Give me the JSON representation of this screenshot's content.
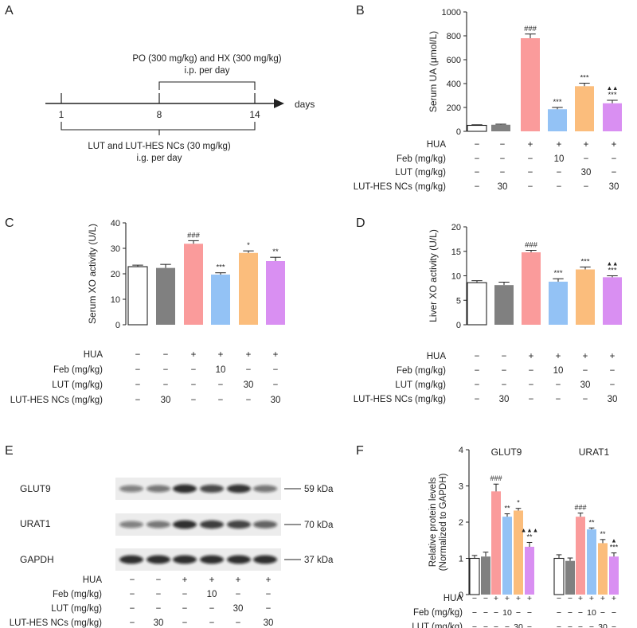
{
  "colors": {
    "control": "#ffffff",
    "lut_hes_only": "#808080",
    "hua": "#fa9b9b",
    "feb": "#93c2f5",
    "lut": "#fbbd7c",
    "lut_hes": "#d98ff2",
    "axis": "#222222"
  },
  "treatment_rows": [
    {
      "label": "HUA",
      "values": [
        "−",
        "−",
        "+",
        "+",
        "+",
        "+"
      ]
    },
    {
      "label": "Feb (mg/kg)",
      "values": [
        "−",
        "−",
        "−",
        "10",
        "−",
        "−"
      ]
    },
    {
      "label": "LUT (mg/kg)",
      "values": [
        "−",
        "−",
        "−",
        "−",
        "30",
        "−"
      ]
    },
    {
      "label": "LUT-HES NCs (mg/kg)",
      "values": [
        "−",
        "30",
        "−",
        "−",
        "−",
        "30"
      ]
    }
  ],
  "panels": {
    "A": {
      "letter": "A",
      "top_text": "PO (300 mg/kg) and HX (300 mg/kg)",
      "top_sub": "i.p. per day",
      "bottom_text": "LUT and LUT-HES NCs (30 mg/kg)",
      "bottom_sub": "i.g. per day",
      "ticks": [
        "1",
        "8",
        "14"
      ],
      "axis_label": "days"
    },
    "B": {
      "letter": "B"
    },
    "C": {
      "letter": "C"
    },
    "D": {
      "letter": "D"
    },
    "E": {
      "letter": "E",
      "bands": [
        {
          "name": "GLUT9",
          "kda": "59 kDa"
        },
        {
          "name": "URAT1",
          "kda": "70 kDa"
        },
        {
          "name": "GAPDH",
          "kda": "37 kDa"
        }
      ]
    },
    "F": {
      "letter": "F"
    }
  },
  "chart_data": [
    {
      "id": "B",
      "type": "bar",
      "ylabel": "Serum UA (μmol/L)",
      "ylim": [
        0,
        1000
      ],
      "yticks": [
        0,
        200,
        400,
        600,
        800,
        1000
      ],
      "categories": [
        "Control",
        "LUT-HES NCs",
        "HUA",
        "HUA+Feb",
        "HUA+LUT",
        "HUA+LUT-HES NCs"
      ],
      "values": [
        50,
        55,
        780,
        185,
        378,
        235
      ],
      "errors": [
        5,
        5,
        35,
        15,
        25,
        25
      ],
      "annotations": [
        "",
        "",
        "###",
        "***",
        "***",
        "***"
      ],
      "annotations_extra": [
        "",
        "",
        "",
        "",
        "",
        "▲▲"
      ]
    },
    {
      "id": "C",
      "type": "bar",
      "ylabel": "Serum XO activity (U/L)",
      "ylim": [
        0,
        40
      ],
      "yticks": [
        0,
        10,
        20,
        30,
        40
      ],
      "categories": [
        "Control",
        "LUT-HES NCs",
        "HUA",
        "HUA+Feb",
        "HUA+LUT",
        "HUA+LUT-HES NCs"
      ],
      "values": [
        22.8,
        22.3,
        31.8,
        19.7,
        28.2,
        25.0
      ],
      "errors": [
        0.6,
        1.4,
        1.2,
        0.7,
        0.8,
        1.5
      ],
      "annotations": [
        "",
        "",
        "###",
        "***",
        "*",
        "**"
      ],
      "annotations_extra": [
        "",
        "",
        "",
        "",
        "",
        ""
      ]
    },
    {
      "id": "D",
      "type": "bar",
      "ylabel": "Liver XO activity (U/L)",
      "ylim": [
        0,
        20
      ],
      "yticks": [
        0,
        5,
        10,
        15,
        20
      ],
      "categories": [
        "Control",
        "LUT-HES NCs",
        "HUA",
        "HUA+Feb",
        "HUA+LUT",
        "HUA+LUT-HES NCs"
      ],
      "values": [
        8.6,
        8.1,
        14.8,
        8.8,
        11.3,
        9.7
      ],
      "errors": [
        0.4,
        0.6,
        0.4,
        0.6,
        0.5,
        0.3
      ],
      "annotations": [
        "",
        "",
        "###",
        "***",
        "***",
        "***"
      ],
      "annotations_extra": [
        "",
        "",
        "",
        "",
        "",
        "▲▲"
      ]
    },
    {
      "id": "F",
      "type": "bar",
      "ylabel": "Relative protein levels (Normalized to GAPDH)",
      "ylabel_line1": "Relative protein levels",
      "ylabel_line2": "(Normalized to GAPDH)",
      "ylim": [
        0,
        4
      ],
      "yticks": [
        0,
        1,
        2,
        3,
        4
      ],
      "categories": [
        "Control",
        "LUT-HES NCs",
        "HUA",
        "HUA+Feb",
        "HUA+LUT",
        "HUA+LUT-HES NCs"
      ],
      "series": [
        {
          "name": "GLUT9",
          "values": [
            1.0,
            1.05,
            2.85,
            2.15,
            2.32,
            1.32
          ],
          "errors": [
            0.08,
            0.12,
            0.2,
            0.08,
            0.06,
            0.12
          ],
          "annotations": [
            "",
            "",
            "###",
            "**",
            "*",
            "**"
          ],
          "annotations_extra": [
            "",
            "",
            "",
            "",
            "",
            "▲▲▲"
          ]
        },
        {
          "name": "URAT1",
          "values": [
            1.0,
            0.93,
            2.15,
            1.8,
            1.42,
            1.05
          ],
          "errors": [
            0.1,
            0.08,
            0.1,
            0.04,
            0.1,
            0.1
          ],
          "annotations": [
            "",
            "",
            "###",
            "**",
            "**",
            "***"
          ],
          "annotations_extra": [
            "",
            "",
            "",
            "",
            "",
            "▲"
          ]
        }
      ]
    }
  ]
}
